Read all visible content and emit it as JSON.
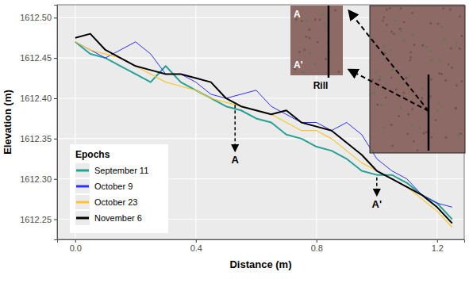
{
  "chart_data": {
    "type": "line",
    "x_label": "Distance (m)",
    "y_label": "Elevation (m)",
    "x": [
      0,
      0.05,
      0.1,
      0.15,
      0.2,
      0.25,
      0.3,
      0.35,
      0.4,
      0.45,
      0.5,
      0.55,
      0.6,
      0.65,
      0.7,
      0.75,
      0.8,
      0.85,
      0.9,
      0.95,
      1.0,
      1.05,
      1.1,
      1.15,
      1.2,
      1.25
    ],
    "series": [
      {
        "name": "September 11",
        "color": "#27a193",
        "values": [
          1612.47,
          1612.455,
          1612.45,
          1612.44,
          1612.43,
          1612.42,
          1612.44,
          1612.42,
          1612.41,
          1612.4,
          1612.39,
          1612.385,
          1612.375,
          1612.37,
          1612.355,
          1612.35,
          1612.34,
          1612.335,
          1612.325,
          1612.31,
          1612.305,
          1612.305,
          1612.295,
          1612.28,
          1612.27,
          1612.25
        ]
      },
      {
        "name": "October 9",
        "color": "#2f2fff",
        "values": [
          1612.47,
          1612.46,
          1612.45,
          1612.46,
          1612.47,
          1612.455,
          1612.43,
          1612.43,
          1612.42,
          1612.405,
          1612.4,
          1612.405,
          1612.41,
          1612.39,
          1612.38,
          1612.37,
          1612.37,
          1612.36,
          1612.37,
          1612.355,
          1612.325,
          1612.31,
          1612.3,
          1612.28,
          1612.27,
          1612.265
        ]
      },
      {
        "name": "October 23",
        "color": "#f7c62f",
        "values": [
          1612.47,
          1612.46,
          1612.455,
          1612.45,
          1612.44,
          1612.43,
          1612.42,
          1612.415,
          1612.41,
          1612.4,
          1612.395,
          1612.39,
          1612.385,
          1612.38,
          1612.37,
          1612.36,
          1612.36,
          1612.35,
          1612.335,
          1612.32,
          1612.31,
          1612.3,
          1612.29,
          1612.275,
          1612.26,
          1612.24
        ]
      },
      {
        "name": "November 6",
        "color": "#000000",
        "values": [
          1612.475,
          1612.48,
          1612.46,
          1612.45,
          1612.44,
          1612.435,
          1612.43,
          1612.43,
          1612.425,
          1612.42,
          1612.4,
          1612.39,
          1612.385,
          1612.38,
          1612.385,
          1612.37,
          1612.365,
          1612.36,
          1612.345,
          1612.33,
          1612.31,
          1612.3,
          1612.29,
          1612.28,
          1612.265,
          1612.245
        ]
      }
    ],
    "xlim": [
      -0.06,
      1.29
    ],
    "ylim": [
      1612.225,
      1612.516
    ],
    "xticks": [
      {
        "value": 0,
        "label": "0.0"
      },
      0.4,
      0.8,
      1.2
    ],
    "yticks": [
      1612.25,
      {
        "value": 1612.3,
        "label": "1612.30"
      },
      1612.35,
      {
        "value": 1612.4,
        "label": "1612.40"
      },
      1612.45,
      {
        "value": 1612.5,
        "label": "1612.50"
      }
    ],
    "grid": true,
    "legend": "bottom-left",
    "legend_title": "Epochs",
    "annotations": [
      {
        "text": "A",
        "x": 0.53,
        "y_from": 1612.392,
        "y_to": 1612.335
      },
      {
        "text": "A'",
        "x": 1.0,
        "y_from": 1612.302,
        "y_to": 1612.28
      }
    ],
    "inset_labels": [
      "A",
      "A'",
      "Rill"
    ]
  }
}
